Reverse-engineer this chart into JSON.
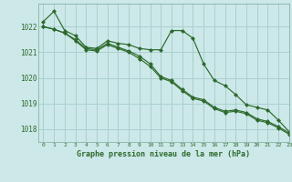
{
  "title": "Graphe pression niveau de la mer (hPa)",
  "background_color": "#cce8e8",
  "grid_color": "#aacfcf",
  "line_color": "#2d6a2d",
  "marker_color": "#2d6a2d",
  "xlim": [
    -0.5,
    23
  ],
  "ylim": [
    1017.5,
    1022.9
  ],
  "yticks": [
    1018,
    1019,
    1020,
    1021,
    1022
  ],
  "xticks": [
    0,
    1,
    2,
    3,
    4,
    5,
    6,
    7,
    8,
    9,
    10,
    11,
    12,
    13,
    14,
    15,
    16,
    17,
    18,
    19,
    20,
    21,
    22,
    23
  ],
  "series": [
    [
      1022.2,
      1022.6,
      1021.85,
      1021.65,
      1021.2,
      1021.15,
      1021.45,
      1021.35,
      1021.3,
      1021.15,
      1021.1,
      1021.1,
      1021.85,
      1021.85,
      1021.55,
      1020.55,
      1019.9,
      1019.7,
      1019.35,
      1018.95,
      1018.85,
      1018.75,
      1018.35,
      1017.9
    ],
    [
      1022.0,
      1021.9,
      1021.75,
      1021.5,
      1021.15,
      1021.1,
      1021.35,
      1021.2,
      1021.05,
      1020.85,
      1020.55,
      1020.05,
      1019.9,
      1019.55,
      1019.25,
      1019.15,
      1018.85,
      1018.7,
      1018.75,
      1018.65,
      1018.4,
      1018.3,
      1018.1,
      1017.85
    ],
    [
      1022.0,
      1021.9,
      1021.75,
      1021.45,
      1021.1,
      1021.05,
      1021.3,
      1021.15,
      1021.0,
      1020.75,
      1020.45,
      1020.0,
      1019.85,
      1019.5,
      1019.2,
      1019.1,
      1018.8,
      1018.65,
      1018.7,
      1018.6,
      1018.35,
      1018.25,
      1018.05,
      1017.8
    ]
  ]
}
